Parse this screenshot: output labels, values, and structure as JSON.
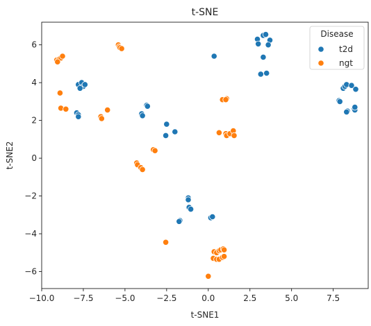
{
  "chart_data": {
    "type": "scatter",
    "title": "t-SNE",
    "xlabel": "t-SNE1",
    "ylabel": "t-SNE2",
    "xlim": [
      -10.0,
      9.6
    ],
    "ylim": [
      -6.9,
      7.2
    ],
    "xticks": [
      -10.0,
      -7.5,
      -5.0,
      -2.5,
      0.0,
      2.5,
      5.0,
      7.5
    ],
    "yticks": [
      -6,
      -4,
      -2,
      0,
      2,
      4,
      6
    ],
    "xtick_labels": [
      "−10.0",
      "−7.5",
      "−5.0",
      "−2.5",
      "0.0",
      "2.5",
      "5.0",
      "7.5"
    ],
    "ytick_labels": [
      "−6",
      "−4",
      "−2",
      "0",
      "2",
      "4",
      "6"
    ],
    "grid": false,
    "legend": {
      "title": "Disease",
      "position": "top-right"
    },
    "series": [
      {
        "name": "t2d",
        "color": "#1f77b4",
        "points": [
          [
            -7.8,
            3.9
          ],
          [
            -7.6,
            4.0
          ],
          [
            -7.5,
            3.8
          ],
          [
            -7.4,
            3.9
          ],
          [
            -7.7,
            3.7
          ],
          [
            -7.9,
            2.4
          ],
          [
            -7.8,
            2.3
          ],
          [
            -7.8,
            2.2
          ],
          [
            -4.0,
            2.35
          ],
          [
            -3.95,
            2.25
          ],
          [
            -3.7,
            2.8
          ],
          [
            -3.65,
            2.75
          ],
          [
            -2.5,
            1.8
          ],
          [
            -2.55,
            1.2
          ],
          [
            -2.0,
            1.4
          ],
          [
            0.35,
            5.4
          ],
          [
            2.95,
            6.3
          ],
          [
            3.0,
            6.05
          ],
          [
            3.3,
            6.5
          ],
          [
            3.45,
            6.55
          ],
          [
            3.7,
            6.25
          ],
          [
            3.6,
            6.0
          ],
          [
            3.3,
            5.35
          ],
          [
            3.15,
            4.45
          ],
          [
            3.5,
            4.5
          ],
          [
            7.85,
            3.05
          ],
          [
            7.9,
            3.0
          ],
          [
            8.1,
            3.7
          ],
          [
            8.2,
            3.8
          ],
          [
            8.3,
            3.9
          ],
          [
            8.6,
            3.85
          ],
          [
            8.85,
            3.65
          ],
          [
            8.35,
            2.5
          ],
          [
            8.3,
            2.45
          ],
          [
            8.75,
            2.6
          ],
          [
            8.8,
            2.55
          ],
          [
            8.8,
            2.7
          ],
          [
            -1.2,
            -2.1
          ],
          [
            -1.2,
            -2.2
          ],
          [
            -1.15,
            -2.6
          ],
          [
            -1.05,
            -2.7
          ],
          [
            -1.7,
            -3.3
          ],
          [
            -1.75,
            -3.35
          ],
          [
            0.15,
            -3.15
          ],
          [
            0.25,
            -3.1
          ]
        ]
      },
      {
        "name": "ngt",
        "color": "#ff7f0e",
        "points": [
          [
            -9.1,
            5.2
          ],
          [
            -9.0,
            5.15
          ],
          [
            -8.95,
            5.25
          ],
          [
            -8.85,
            5.3
          ],
          [
            -8.75,
            5.4
          ],
          [
            -9.05,
            5.1
          ],
          [
            -5.4,
            6.0
          ],
          [
            -5.35,
            5.9
          ],
          [
            -5.3,
            5.85
          ],
          [
            -5.2,
            5.8
          ],
          [
            -8.9,
            3.45
          ],
          [
            -8.85,
            2.65
          ],
          [
            -8.55,
            2.6
          ],
          [
            -6.45,
            2.2
          ],
          [
            -6.4,
            2.1
          ],
          [
            -6.05,
            2.55
          ],
          [
            -3.3,
            0.45
          ],
          [
            -3.2,
            0.4
          ],
          [
            -4.3,
            -0.25
          ],
          [
            -4.25,
            -0.35
          ],
          [
            -4.05,
            -0.5
          ],
          [
            -3.95,
            -0.6
          ],
          [
            0.85,
            3.1
          ],
          [
            1.1,
            3.15
          ],
          [
            1.05,
            3.1
          ],
          [
            0.65,
            1.35
          ],
          [
            1.05,
            1.3
          ],
          [
            1.1,
            1.2
          ],
          [
            1.3,
            1.3
          ],
          [
            1.5,
            1.45
          ],
          [
            1.55,
            1.2
          ],
          [
            -2.55,
            -4.45
          ],
          [
            0.35,
            -4.95
          ],
          [
            0.5,
            -5.0
          ],
          [
            0.65,
            -4.9
          ],
          [
            0.75,
            -4.85
          ],
          [
            0.3,
            -5.3
          ],
          [
            0.5,
            -5.35
          ],
          [
            0.65,
            -5.35
          ],
          [
            0.9,
            -4.8
          ],
          [
            0.95,
            -4.85
          ],
          [
            0.85,
            -5.25
          ],
          [
            0.95,
            -5.2
          ],
          [
            0.0,
            -6.25
          ]
        ]
      }
    ]
  }
}
